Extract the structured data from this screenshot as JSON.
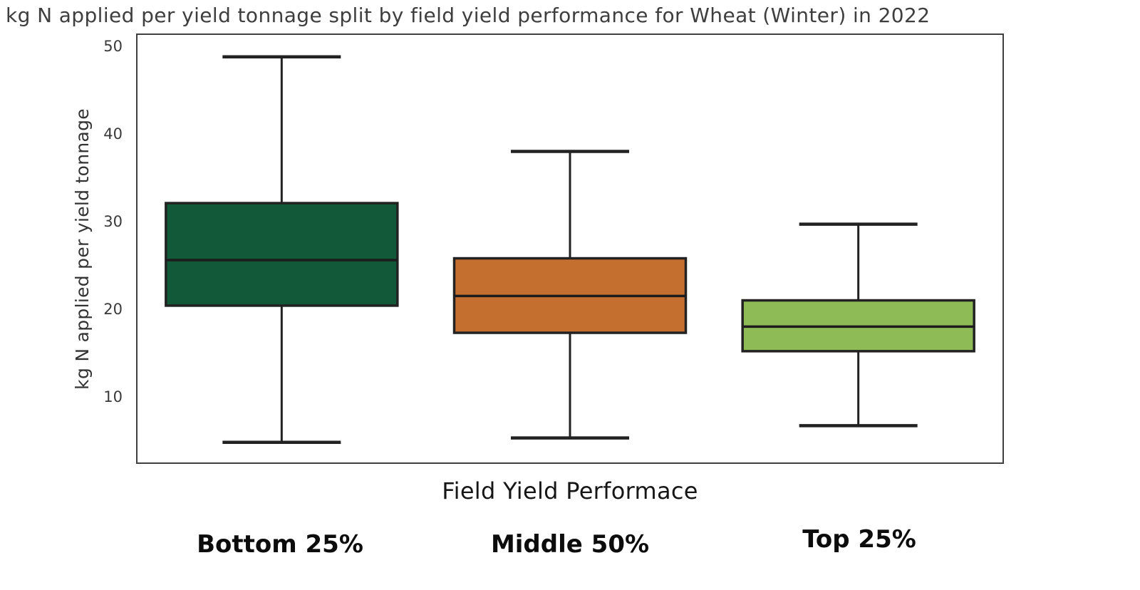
{
  "chart_data": {
    "type": "box",
    "title": "kg N applied per yield tonnage split by field yield performance for Wheat (Winter) in 2022",
    "xlabel": "Field Yield Performace",
    "ylabel": "kg N applied per yield tonnage",
    "ylim": [
      2.7,
      51.5
    ],
    "yticks": [
      10,
      20,
      30,
      40,
      50
    ],
    "grid": false,
    "legend": false,
    "categories": [
      "Bottom 25%",
      "Middle 50%",
      "Top 25%"
    ],
    "series": [
      {
        "name": "Bottom 25%",
        "color": "#12593a",
        "whisker_low": 5.0,
        "q1": 20.6,
        "median": 25.8,
        "q3": 32.3,
        "whisker_high": 49.0
      },
      {
        "name": "Middle 50%",
        "color": "#c46e30",
        "whisker_low": 5.5,
        "q1": 17.5,
        "median": 21.7,
        "q3": 26.0,
        "whisker_high": 38.2
      },
      {
        "name": "Top 25%",
        "color": "#8ebb56",
        "whisker_low": 6.9,
        "q1": 15.4,
        "median": 18.2,
        "q3": 21.2,
        "whisker_high": 29.9
      }
    ],
    "stroke_color": "#222222"
  }
}
